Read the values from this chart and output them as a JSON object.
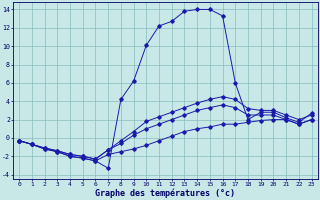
{
  "title": "Graphe des températures (°c)",
  "background_color": "#c8e8e8",
  "grid_color": "#88bbbb",
  "line_color": "#1a1aaa",
  "xlim": [
    -0.5,
    23.5
  ],
  "ylim": [
    -4.5,
    14.8
  ],
  "xticks": [
    0,
    1,
    2,
    3,
    4,
    5,
    6,
    7,
    8,
    9,
    10,
    11,
    12,
    13,
    14,
    15,
    16,
    17,
    18,
    19,
    20,
    21,
    22,
    23
  ],
  "yticks": [
    -4,
    -2,
    0,
    2,
    4,
    6,
    8,
    10,
    12,
    14
  ],
  "hours": [
    0,
    1,
    2,
    3,
    4,
    5,
    6,
    7,
    8,
    9,
    10,
    11,
    12,
    13,
    14,
    15,
    16,
    17,
    18,
    19,
    20,
    21,
    22,
    23
  ],
  "line_max": [
    -0.3,
    -0.7,
    -1.2,
    -1.5,
    -2.0,
    -2.2,
    -2.5,
    -3.3,
    4.2,
    6.2,
    10.1,
    12.2,
    12.7,
    13.8,
    14.0,
    14.0,
    13.3,
    6.0,
    2.0,
    2.8,
    2.8,
    2.2,
    1.7,
    2.7
  ],
  "line_min": [
    -0.3,
    -0.7,
    -1.2,
    -1.5,
    -2.0,
    -2.2,
    -2.5,
    -1.8,
    -1.5,
    -1.2,
    -0.8,
    -0.3,
    0.2,
    0.7,
    1.0,
    1.2,
    1.5,
    1.5,
    1.7,
    1.9,
    2.0,
    2.0,
    1.5,
    2.0
  ],
  "line_avg": [
    -0.3,
    -0.7,
    -1.1,
    -1.4,
    -1.8,
    -2.0,
    -2.3,
    -1.3,
    -0.3,
    0.7,
    1.8,
    2.3,
    2.8,
    3.3,
    3.8,
    4.2,
    4.5,
    4.2,
    3.2,
    3.0,
    3.0,
    2.5,
    2.0,
    2.5
  ],
  "line_feel": [
    -0.3,
    -0.7,
    -1.1,
    -1.4,
    -1.8,
    -2.0,
    -2.3,
    -1.3,
    -0.6,
    0.3,
    1.0,
    1.5,
    2.0,
    2.5,
    3.0,
    3.3,
    3.6,
    3.3,
    2.5,
    2.5,
    2.5,
    2.0,
    1.5,
    2.0
  ]
}
